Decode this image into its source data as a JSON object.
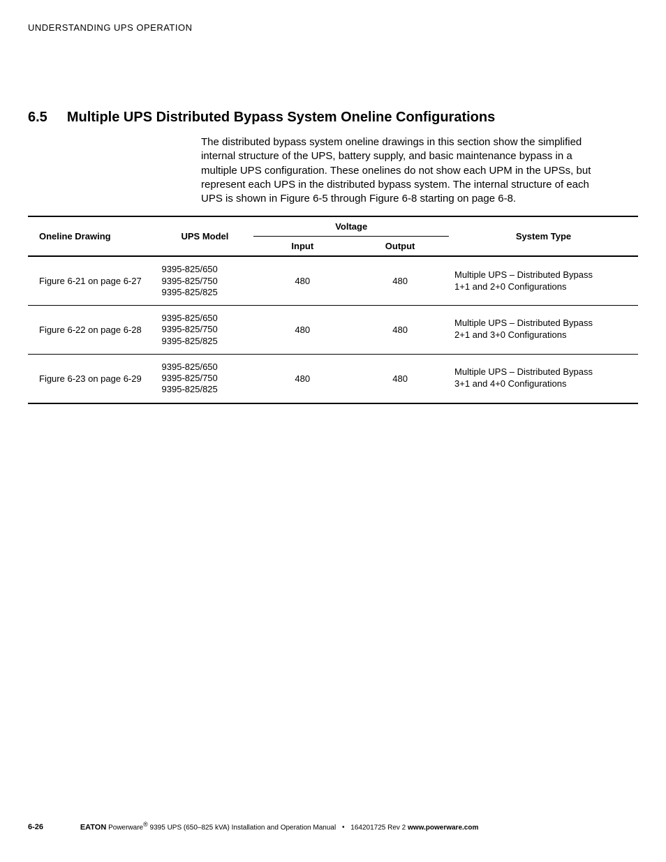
{
  "header": {
    "running": "UNDERSTANDING UPS OPERATION"
  },
  "section": {
    "number": "6.5",
    "title": "Multiple UPS Distributed Bypass System Oneline Configurations",
    "paragraph": "The distributed bypass system oneline drawings in this section show the simplified internal structure of the UPS, battery supply, and basic maintenance bypass in a multiple UPS configuration. These onelines do not show each UPM in the UPSs, but represent each UPS in the distributed bypass system. The internal structure of each UPS is shown in Figure 6-5 through Figure 6-8 starting on page 6-8."
  },
  "table": {
    "headers": {
      "oneline": "Oneline Drawing",
      "model": "UPS Model",
      "voltage": "Voltage",
      "input": "Input",
      "output": "Output",
      "system": "System Type"
    },
    "col_widths": {
      "drawing": "21%",
      "model": "16%",
      "input": "16%",
      "output": "16%",
      "system": "31%"
    },
    "rows": [
      {
        "drawing": "Figure 6-21 on page 6-27",
        "models": "9395-825/650\n9395-825/750\n9395-825/825",
        "input": "480",
        "output": "480",
        "system": "Multiple UPS – Distributed Bypass\n1+1 and 2+0 Configurations"
      },
      {
        "drawing": "Figure 6-22 on page 6-28",
        "models": "9395-825/650\n9395-825/750\n9395-825/825",
        "input": "480",
        "output": "480",
        "system": "Multiple UPS – Distributed Bypass\n2+1 and 3+0 Configurations"
      },
      {
        "drawing": "Figure 6-23 on page 6-29",
        "models": "9395-825/650\n9395-825/750\n9395-825/825",
        "input": "480",
        "output": "480",
        "system": "Multiple UPS – Distributed Bypass\n3+1 and 4+0 Configurations"
      }
    ]
  },
  "footer": {
    "page_number": "6-26",
    "brand": "EATON",
    "product_prefix": " Powerware",
    "reg": "®",
    "product_suffix": " 9395 UPS (650–825 kVA) Installation and Operation Manual",
    "bullet": "•",
    "docid": "164201725 Rev 2",
    "url": "www.powerware.com"
  },
  "colors": {
    "text": "#000000",
    "background": "#ffffff",
    "rule_heavy": "#000000",
    "rule_light": "#000000"
  }
}
